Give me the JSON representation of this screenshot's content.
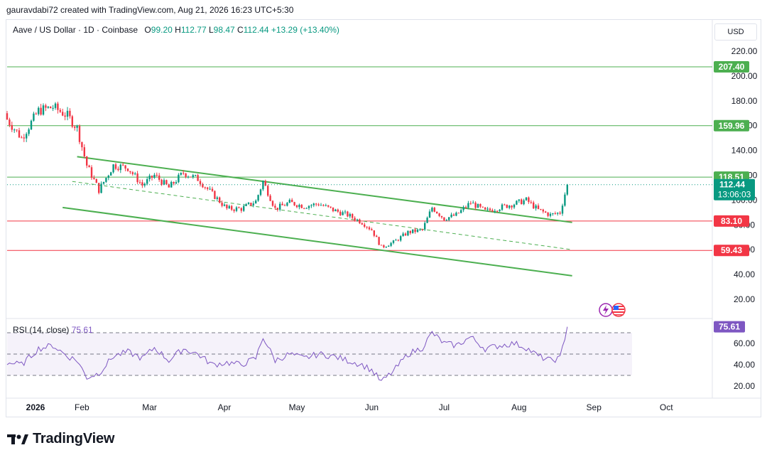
{
  "header": {
    "text": "gauravdabi72 created with TradingView.com, Aug 21, 2026 16:23 UTC+5:30"
  },
  "legend": {
    "symbol": "Aave / US Dollar · 1D · Coinbase",
    "o_label": "O",
    "o": "99.20",
    "h_label": "H",
    "h": "112.77",
    "l_label": "L",
    "l": "98.47",
    "c_label": "C",
    "c": "112.44",
    "change": "+13.29 (+13.40%)"
  },
  "currency": "USD",
  "rsi_legend": {
    "label": "RSI (14, close)",
    "value": "75.61"
  },
  "brand": {
    "name": "TradingView"
  },
  "colors": {
    "up": "#089981",
    "down": "#f23645",
    "green_line": "#4caf50",
    "red_line": "#f23645",
    "rsi": "#7e57c2"
  },
  "chart_data": [
    {
      "type": "candlestick",
      "title": "Aave / US Dollar · 1D · Coinbase",
      "ylim": [
        0,
        240
      ],
      "yticks": [
        "20.00",
        "40.00",
        "60.00",
        "80.00",
        "100.00",
        "120.00",
        "140.00",
        "160.00",
        "180.00",
        "200.00",
        "220.00"
      ],
      "xticks": [
        "2026",
        "Feb",
        "Mar",
        "Apr",
        "May",
        "Jun",
        "Jul",
        "Aug",
        "Sep",
        "Oct"
      ],
      "horizontal_levels": [
        {
          "value": 207.4,
          "label": "207.40",
          "color": "green"
        },
        {
          "value": 159.96,
          "label": "159.96",
          "color": "green"
        },
        {
          "value": 118.51,
          "label": "118.51",
          "color": "green"
        },
        {
          "value": 83.1,
          "label": "83.10",
          "color": "red"
        },
        {
          "value": 59.43,
          "label": "59.43",
          "color": "red"
        }
      ],
      "last_price": {
        "value": 112.44,
        "label": "112.44",
        "countdown": "13:06:03"
      },
      "close_series": {
        "dates": [
          "2026-01-01",
          "2026-01-07",
          "2026-01-14",
          "2026-01-20",
          "2026-01-26",
          "2026-01-30",
          "2026-02-03",
          "2026-02-08",
          "2026-02-14",
          "2026-02-20",
          "2026-02-26",
          "2026-03-03",
          "2026-03-09",
          "2026-03-15",
          "2026-03-21",
          "2026-03-27",
          "2026-04-02",
          "2026-04-08",
          "2026-04-14",
          "2026-04-17",
          "2026-04-22",
          "2026-04-28",
          "2026-05-04",
          "2026-05-10",
          "2026-05-16",
          "2026-05-22",
          "2026-05-28",
          "2026-06-01",
          "2026-06-05",
          "2026-06-10",
          "2026-06-16",
          "2026-06-22",
          "2026-06-26",
          "2026-07-01",
          "2026-07-06",
          "2026-07-12",
          "2026-07-18",
          "2026-07-24",
          "2026-07-30",
          "2026-08-04",
          "2026-08-09",
          "2026-08-14",
          "2026-08-18",
          "2026-08-21"
        ],
        "close": [
          165,
          150,
          172,
          175,
          168,
          158,
          128,
          108,
          128,
          126,
          112,
          120,
          110,
          122,
          117,
          105,
          93,
          93,
          99,
          115,
          93,
          98,
          95,
          97,
          92,
          88,
          82,
          76,
          62,
          66,
          74,
          76,
          94,
          85,
          88,
          98,
          91,
          94,
          97,
          100,
          92,
          88,
          90,
          112.44
        ]
      }
    },
    {
      "type": "line",
      "title": "RSI (14, close)",
      "ylim": [
        10,
        80
      ],
      "yticks": [
        "20.00",
        "40.00",
        "60.00"
      ],
      "bands": [
        30,
        50,
        70
      ],
      "last_value": {
        "value": 75.61,
        "label": "75.61"
      },
      "dates": [
        "2026-01-01",
        "2026-01-07",
        "2026-01-14",
        "2026-01-20",
        "2026-01-26",
        "2026-01-30",
        "2026-02-03",
        "2026-02-08",
        "2026-02-14",
        "2026-02-20",
        "2026-02-26",
        "2026-03-03",
        "2026-03-09",
        "2026-03-15",
        "2026-03-21",
        "2026-03-27",
        "2026-04-02",
        "2026-04-08",
        "2026-04-14",
        "2026-04-17",
        "2026-04-22",
        "2026-04-28",
        "2026-05-04",
        "2026-05-10",
        "2026-05-16",
        "2026-05-22",
        "2026-05-28",
        "2026-06-01",
        "2026-06-05",
        "2026-06-10",
        "2026-06-16",
        "2026-06-22",
        "2026-06-26",
        "2026-07-01",
        "2026-07-06",
        "2026-07-12",
        "2026-07-18",
        "2026-07-24",
        "2026-07-30",
        "2026-08-04",
        "2026-08-09",
        "2026-08-14",
        "2026-08-18",
        "2026-08-21"
      ],
      "values": [
        42,
        40,
        55,
        58,
        48,
        44,
        28,
        32,
        48,
        52,
        46,
        56,
        44,
        55,
        50,
        40,
        42,
        40,
        46,
        66,
        44,
        50,
        46,
        50,
        48,
        44,
        40,
        35,
        24,
        34,
        50,
        56,
        70,
        60,
        58,
        66,
        55,
        58,
        60,
        56,
        48,
        44,
        46,
        75.61
      ]
    }
  ]
}
